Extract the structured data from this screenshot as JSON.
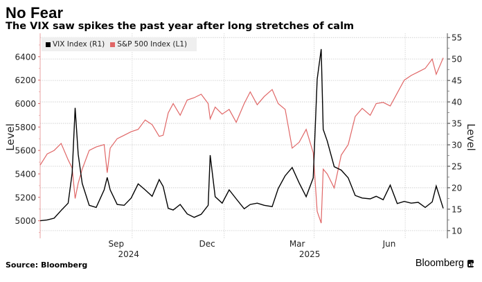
{
  "title": "No Fear",
  "subtitle": "The VIX saw spikes the past year after long stretches of calm",
  "source": "Source: Bloomberg",
  "brand": "Bloomberg",
  "chart_data": {
    "type": "line",
    "title": "No Fear",
    "subtitle": "The VIX saw spikes the past year after long stretches of calm",
    "xlabel": "",
    "x_ticks": [
      {
        "label": "Sep",
        "date": "2024-09-15"
      },
      {
        "label": "Dec",
        "date": "2024-12-15"
      },
      {
        "label": "Mar",
        "date": "2025-03-15"
      },
      {
        "label": "Jun",
        "date": "2025-06-15"
      }
    ],
    "year_labels": [
      {
        "label": "2024",
        "date": "2024-09-15"
      },
      {
        "label": "2025",
        "date": "2025-03-15"
      }
    ],
    "x_gridlines": [
      "2024-10-01",
      "2025-01-01",
      "2025-04-01",
      "2025-07-01"
    ],
    "xlim": [
      "2024-07-01",
      "2025-08-08"
    ],
    "left_axis": {
      "label": "Level",
      "ticks": [
        5000,
        5200,
        5400,
        5600,
        5800,
        6000,
        6200,
        6400
      ],
      "ylim": [
        4850,
        6600
      ],
      "color": "#e06666"
    },
    "right_axis": {
      "label": "Level",
      "ticks": [
        10,
        15,
        20,
        25,
        30,
        35,
        40,
        45,
        50,
        55
      ],
      "ylim": [
        8.2,
        56
      ],
      "color": "#555555"
    },
    "grid": true,
    "legend": {
      "position": "top-left",
      "entries": [
        {
          "name": "VIX Index (R1)",
          "color": "#000000"
        },
        {
          "name": "S&P 500 Index (L1)",
          "color": "#e06666"
        }
      ]
    },
    "series": [
      {
        "name": "VIX Index (R1)",
        "axis": "right",
        "color": "#000000",
        "dates": [
          "2024-07-01",
          "2024-07-08",
          "2024-07-15",
          "2024-07-22",
          "2024-07-29",
          "2024-08-02",
          "2024-08-05",
          "2024-08-08",
          "2024-08-12",
          "2024-08-19",
          "2024-08-26",
          "2024-09-03",
          "2024-09-06",
          "2024-09-09",
          "2024-09-16",
          "2024-09-23",
          "2024-09-30",
          "2024-10-07",
          "2024-10-14",
          "2024-10-21",
          "2024-10-28",
          "2024-11-01",
          "2024-11-06",
          "2024-11-11",
          "2024-11-18",
          "2024-11-25",
          "2024-12-02",
          "2024-12-09",
          "2024-12-16",
          "2024-12-18",
          "2024-12-23",
          "2024-12-30",
          "2025-01-06",
          "2025-01-13",
          "2025-01-21",
          "2025-01-27",
          "2025-02-03",
          "2025-02-10",
          "2025-02-18",
          "2025-02-24",
          "2025-03-03",
          "2025-03-10",
          "2025-03-17",
          "2025-03-24",
          "2025-03-31",
          "2025-04-04",
          "2025-04-08",
          "2025-04-10",
          "2025-04-14",
          "2025-04-21",
          "2025-04-28",
          "2025-05-05",
          "2025-05-12",
          "2025-05-19",
          "2025-05-27",
          "2025-06-02",
          "2025-06-09",
          "2025-06-16",
          "2025-06-23",
          "2025-06-30",
          "2025-07-07",
          "2025-07-14",
          "2025-07-21",
          "2025-07-28",
          "2025-08-01",
          "2025-08-08"
        ],
        "values": [
          12.3,
          12.5,
          12.9,
          14.7,
          16.4,
          23.4,
          38.6,
          27.8,
          21.0,
          15.9,
          15.4,
          19.5,
          22.4,
          19.5,
          16.1,
          15.9,
          17.6,
          20.9,
          19.5,
          18.0,
          21.9,
          20.3,
          15.2,
          14.8,
          16.1,
          13.9,
          13.1,
          13.8,
          15.9,
          27.6,
          17.9,
          16.4,
          19.5,
          17.4,
          15.1,
          16.1,
          16.4,
          15.9,
          15.6,
          19.8,
          22.8,
          24.7,
          21.1,
          17.9,
          22.3,
          45.3,
          52.3,
          33.6,
          30.9,
          24.9,
          24.1,
          22.3,
          18.2,
          17.6,
          17.4,
          18.0,
          17.2,
          20.6,
          16.3,
          16.8,
          16.4,
          16.6,
          15.4,
          16.7,
          20.4,
          15.2
        ]
      },
      {
        "name": "S&P 500 Index (L1)",
        "axis": "left",
        "color": "#e06666",
        "dates": [
          "2024-07-01",
          "2024-07-08",
          "2024-07-15",
          "2024-07-22",
          "2024-07-29",
          "2024-08-02",
          "2024-08-05",
          "2024-08-08",
          "2024-08-12",
          "2024-08-19",
          "2024-08-26",
          "2024-09-03",
          "2024-09-06",
          "2024-09-09",
          "2024-09-16",
          "2024-09-23",
          "2024-09-30",
          "2024-10-07",
          "2024-10-14",
          "2024-10-21",
          "2024-10-28",
          "2024-11-01",
          "2024-11-06",
          "2024-11-11",
          "2024-11-18",
          "2024-11-25",
          "2024-12-02",
          "2024-12-09",
          "2024-12-16",
          "2024-12-18",
          "2024-12-23",
          "2024-12-30",
          "2025-01-06",
          "2025-01-13",
          "2025-01-21",
          "2025-01-27",
          "2025-02-03",
          "2025-02-10",
          "2025-02-18",
          "2025-02-24",
          "2025-03-03",
          "2025-03-10",
          "2025-03-17",
          "2025-03-24",
          "2025-03-31",
          "2025-04-04",
          "2025-04-08",
          "2025-04-10",
          "2025-04-14",
          "2025-04-21",
          "2025-04-28",
          "2025-05-05",
          "2025-05-12",
          "2025-05-19",
          "2025-05-27",
          "2025-06-02",
          "2025-06-09",
          "2025-06-16",
          "2025-06-23",
          "2025-06-30",
          "2025-07-07",
          "2025-07-14",
          "2025-07-21",
          "2025-07-28",
          "2025-08-01",
          "2025-08-08"
        ],
        "values": [
          5475,
          5570,
          5600,
          5660,
          5520,
          5450,
          5190,
          5320,
          5440,
          5600,
          5630,
          5650,
          5410,
          5620,
          5700,
          5730,
          5760,
          5780,
          5860,
          5820,
          5720,
          5730,
          5920,
          6000,
          5900,
          6030,
          6050,
          6080,
          6000,
          5870,
          5970,
          5910,
          5950,
          5840,
          6000,
          6100,
          5990,
          6060,
          6120,
          6000,
          5950,
          5620,
          5670,
          5780,
          5580,
          5080,
          4980,
          5440,
          5400,
          5280,
          5560,
          5650,
          5890,
          5960,
          5900,
          6000,
          6010,
          5980,
          6090,
          6200,
          6240,
          6270,
          6300,
          6380,
          6250,
          6390
        ]
      }
    ]
  }
}
